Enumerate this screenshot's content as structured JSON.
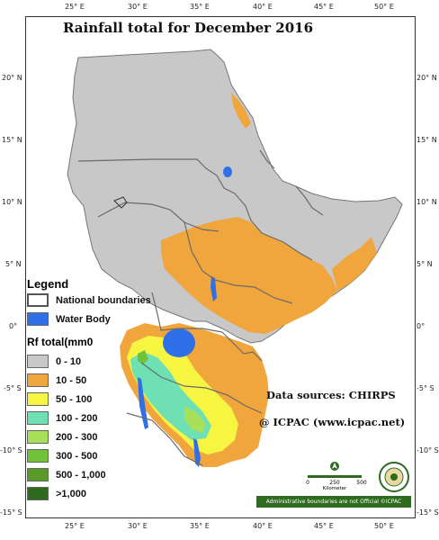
{
  "title": "Rainfall total for  December  2016",
  "lon_ticks_top": [
    "25° E",
    "30° E",
    "35° E",
    "40° E",
    "45° E",
    "50° E"
  ],
  "lon_ticks_bottom": [
    "25° E",
    "30° E",
    "35° E",
    "40° E",
    "45° E",
    "50° E"
  ],
  "lat_ticks_left": [
    "20° N",
    "15° N",
    "10° N",
    "5° N",
    "0°",
    "-5° S",
    "-10° S",
    "-15° S"
  ],
  "lat_ticks_right": [
    "20° N",
    "15° N",
    "10° N",
    "5° N",
    "0°",
    "-5° S",
    "-10° S",
    "-15° S"
  ],
  "legend": {
    "title": "Legend",
    "boundaries_label": "National boundaries",
    "water_label": "Water Body",
    "rf_title": "Rf total(mm0",
    "classes": [
      {
        "label": "0 - 10",
        "color": "#c8c8c8"
      },
      {
        "label": "10 - 50",
        "color": "#f0a63c"
      },
      {
        "label": "50 - 100",
        "color": "#f5f542"
      },
      {
        "label": "100 - 200",
        "color": "#6ee0b4"
      },
      {
        "label": "200 - 300",
        "color": "#a8e05a"
      },
      {
        "label": "300 - 500",
        "color": "#6fc23a"
      },
      {
        "label": "500 - 1,000",
        "color": "#5a9a2a"
      },
      {
        "label": ">1,000",
        "color": "#2e6a1e"
      }
    ],
    "water_color": "#2f6fe8"
  },
  "data_sources": "Data sources: CHIRPS",
  "credit": "@ ICPAC (www.icpac.net)",
  "scale": {
    "labels": [
      "0",
      "250",
      "500"
    ],
    "unit": "Kilometer"
  },
  "disclaimer": "Administrative boundaries are not Official   ©ICPAC"
}
